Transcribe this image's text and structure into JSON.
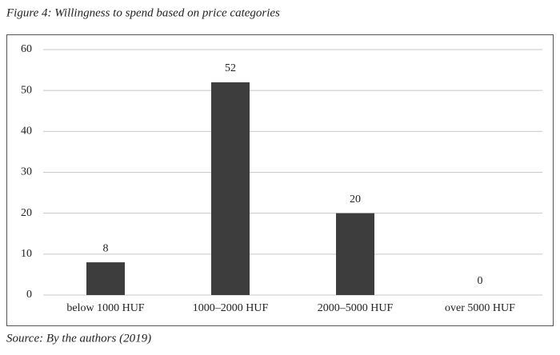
{
  "chart_data": {
    "type": "bar",
    "title": "Figure 4: Willingness to spend based on price categories",
    "categories": [
      "below 1000 HUF",
      "1000–2000 HUF",
      "2000–5000 HUF",
      "over 5000 HUF"
    ],
    "values": [
      8,
      52,
      20,
      0
    ],
    "color": "#3d3d3d",
    "ylim": [
      0,
      60
    ],
    "yticks": [
      0,
      10,
      20,
      30,
      40,
      50,
      60
    ],
    "grid": true,
    "source": "Source: By the authors (2019)"
  }
}
